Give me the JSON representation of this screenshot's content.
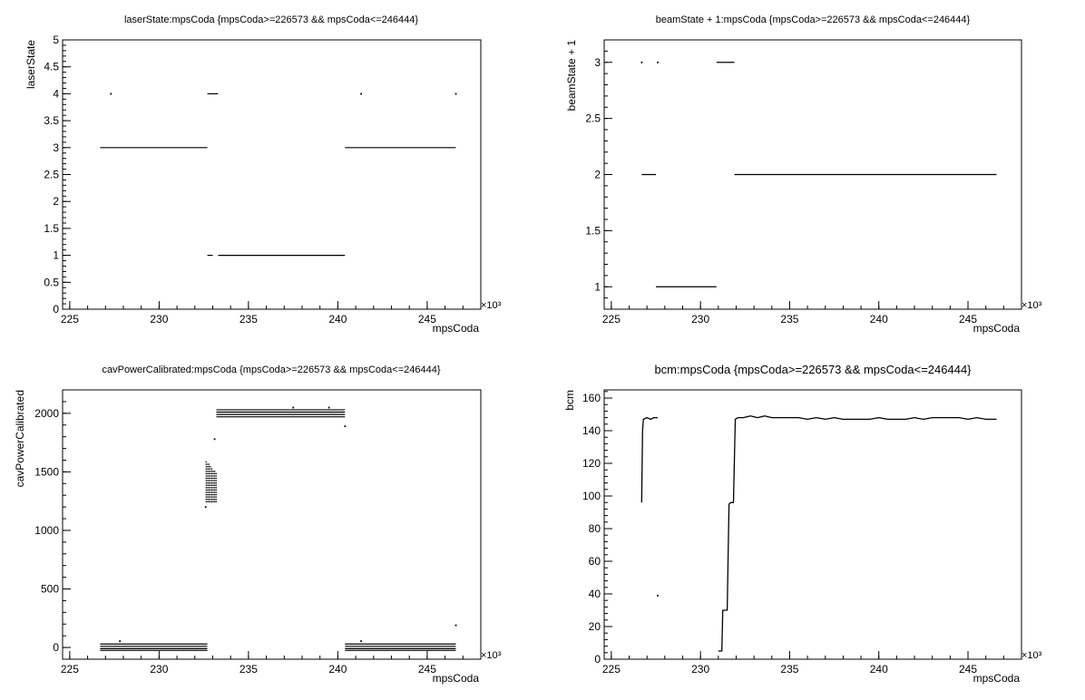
{
  "chart_data": [
    {
      "type": "scatter",
      "title": "laserState:mpsCoda {mpsCoda>=226573 && mpsCoda<=246444}",
      "xlabel": "mpsCoda",
      "ylabel": "laserState",
      "x_multiplier": "×10³",
      "xlim": [
        224.6,
        248.0
      ],
      "ylim": [
        0,
        5
      ],
      "x_ticks": [
        225,
        230,
        235,
        240,
        245
      ],
      "y_ticks": [
        0,
        0.5,
        1,
        1.5,
        2,
        2.5,
        3,
        3.5,
        4,
        4.5,
        5
      ],
      "y_tick_labels": [
        "0",
        "0.5",
        "1",
        "1.5",
        "2",
        "2.5",
        "3",
        "3.5",
        "4",
        "4.5",
        "5"
      ],
      "grid": false,
      "legend": "none",
      "segments": [
        {
          "x": [
            226.7,
            232.7
          ],
          "y": 3
        },
        {
          "x": [
            240.4,
            246.6
          ],
          "y": 3
        },
        {
          "x": [
            233.3,
            240.4
          ],
          "y": 1
        },
        {
          "x": [
            232.7,
            233.0
          ],
          "y": 1
        },
        {
          "x": [
            232.7,
            233.3
          ],
          "y": 4
        }
      ],
      "points": [
        {
          "x": 227.3,
          "y": 4
        },
        {
          "x": 241.3,
          "y": 4
        },
        {
          "x": 246.6,
          "y": 4
        }
      ]
    },
    {
      "type": "scatter",
      "title": "beamState + 1:mpsCoda {mpsCoda>=226573 && mpsCoda<=246444}",
      "xlabel": "mpsCoda",
      "ylabel": "beamState + 1",
      "x_multiplier": "×10³",
      "xlim": [
        224.6,
        248.0
      ],
      "ylim": [
        0.8,
        3.2
      ],
      "x_ticks": [
        225,
        230,
        235,
        240,
        245
      ],
      "y_ticks": [
        1,
        1.5,
        2,
        2.5,
        3
      ],
      "y_tick_labels": [
        "1",
        "1.5",
        "2",
        "2.5",
        "3"
      ],
      "grid": false,
      "legend": "none",
      "segments": [
        {
          "x": [
            226.7,
            227.5
          ],
          "y": 2
        },
        {
          "x": [
            227.5,
            230.9
          ],
          "y": 1
        },
        {
          "x": [
            230.9,
            231.9
          ],
          "y": 3
        },
        {
          "x": [
            231.9,
            246.6
          ],
          "y": 2
        }
      ],
      "points": [
        {
          "x": 226.7,
          "y": 3
        },
        {
          "x": 227.6,
          "y": 3
        }
      ]
    },
    {
      "type": "scatter",
      "title": "cavPowerCalibrated:mpsCoda {mpsCoda>=226573 && mpsCoda<=246444}",
      "xlabel": "mpsCoda",
      "ylabel": "cavPowerCalibrated",
      "x_multiplier": "×10³",
      "xlim": [
        224.6,
        248.0
      ],
      "ylim": [
        -100,
        2200
      ],
      "x_ticks": [
        225,
        230,
        235,
        240,
        245
      ],
      "y_ticks": [
        0,
        500,
        1000,
        1500,
        2000
      ],
      "y_tick_labels": [
        "0",
        "500",
        "1000",
        "1500",
        "2000"
      ],
      "grid": false,
      "legend": "none",
      "segments": [
        {
          "x": [
            226.7,
            232.7
          ],
          "y": 30
        },
        {
          "x": [
            226.7,
            232.7
          ],
          "y": 10
        },
        {
          "x": [
            226.7,
            232.7
          ],
          "y": -10
        },
        {
          "x": [
            226.7,
            232.7
          ],
          "y": -25
        },
        {
          "x": [
            240.4,
            246.6
          ],
          "y": 30
        },
        {
          "x": [
            240.4,
            246.6
          ],
          "y": 10
        },
        {
          "x": [
            240.4,
            246.6
          ],
          "y": -10
        },
        {
          "x": [
            240.4,
            246.6
          ],
          "y": -25
        },
        {
          "x": [
            233.2,
            240.4
          ],
          "y": 2030
        },
        {
          "x": [
            233.2,
            240.4
          ],
          "y": 2010
        },
        {
          "x": [
            233.2,
            240.4
          ],
          "y": 1990
        },
        {
          "x": [
            233.2,
            240.4
          ],
          "y": 1970
        }
      ],
      "clusters": [
        {
          "x_start": 232.6,
          "x_end": 233.2,
          "y_min": 1250,
          "y_max": 1600
        }
      ],
      "points": [
        {
          "x": 233.1,
          "y": 1780
        },
        {
          "x": 240.4,
          "y": 1890
        },
        {
          "x": 246.6,
          "y": 190
        },
        {
          "x": 232.6,
          "y": 1200
        },
        {
          "x": 227.8,
          "y": 55
        },
        {
          "x": 241.3,
          "y": 55
        },
        {
          "x": 237.5,
          "y": 2050
        },
        {
          "x": 239.5,
          "y": 2050
        }
      ]
    },
    {
      "type": "scatter",
      "title": "bcm:mpsCoda {mpsCoda>=226573 && mpsCoda<=246444}",
      "xlabel": "mpsCoda",
      "ylabel": "bcm",
      "x_multiplier": "×10³",
      "xlim": [
        224.6,
        248.0
      ],
      "ylim": [
        0,
        165
      ],
      "x_ticks": [
        225,
        230,
        235,
        240,
        245
      ],
      "y_ticks": [
        0,
        20,
        40,
        60,
        80,
        100,
        120,
        140,
        160
      ],
      "y_tick_labels": [
        "0",
        "20",
        "40",
        "60",
        "80",
        "100",
        "120",
        "140",
        "160"
      ],
      "grid": false,
      "legend": "none",
      "traces": [
        {
          "x": [
            226.7,
            226.75,
            226.8,
            227.0,
            227.2,
            227.4,
            227.6
          ],
          "y": [
            96,
            140,
            147,
            148,
            147,
            148,
            148
          ]
        },
        {
          "x": [
            231.0,
            231.2,
            231.25,
            231.4,
            231.5,
            231.6,
            231.7,
            231.85,
            231.95,
            232.1,
            232.4,
            232.8,
            233.2,
            233.6,
            234.0,
            234.5,
            235.0,
            235.5,
            236.0,
            236.5,
            237.0,
            237.5,
            238.0,
            238.5,
            239.0,
            239.5,
            240.0,
            240.5,
            241.0,
            241.5,
            242.0,
            242.5,
            243.0,
            243.5,
            244.0,
            244.5,
            245.0,
            245.5,
            246.0,
            246.6
          ],
          "y": [
            5,
            5,
            30,
            30,
            30,
            95,
            96,
            96,
            147,
            148,
            148,
            149,
            148,
            149,
            148,
            148,
            148,
            148,
            147,
            148,
            147,
            148,
            147,
            147,
            147,
            147,
            148,
            147,
            147,
            147,
            148,
            147,
            148,
            148,
            148,
            148,
            147,
            148,
            147,
            147
          ]
        }
      ],
      "points": [
        {
          "x": 227.6,
          "y": 39
        }
      ]
    }
  ]
}
